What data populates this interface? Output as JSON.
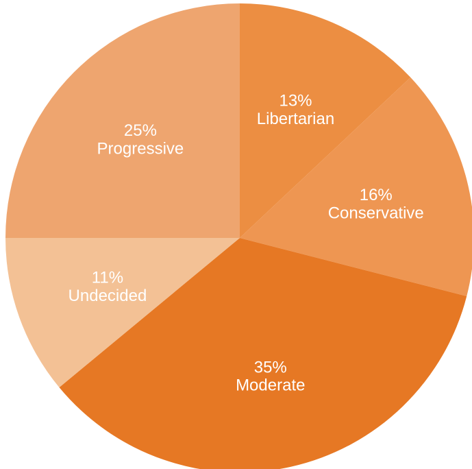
{
  "chart_data": {
    "type": "pie",
    "slices": [
      {
        "label": "Libertarian",
        "value": 13,
        "value_text": "13%",
        "color": "#EC8E42"
      },
      {
        "label": "Conservative",
        "value": 16,
        "value_text": "16%",
        "color": "#EE9652"
      },
      {
        "label": "Moderate",
        "value": 35,
        "value_text": "35%",
        "color": "#E67824"
      },
      {
        "label": "Undecided",
        "value": 11,
        "value_text": "11%",
        "color": "#F3C195"
      },
      {
        "label": "Progressive",
        "value": 25,
        "value_text": "25%",
        "color": "#EEA56F"
      }
    ],
    "start_at": "top",
    "direction": "clockwise",
    "legend": "none",
    "label_color": "#FFFFFF"
  }
}
